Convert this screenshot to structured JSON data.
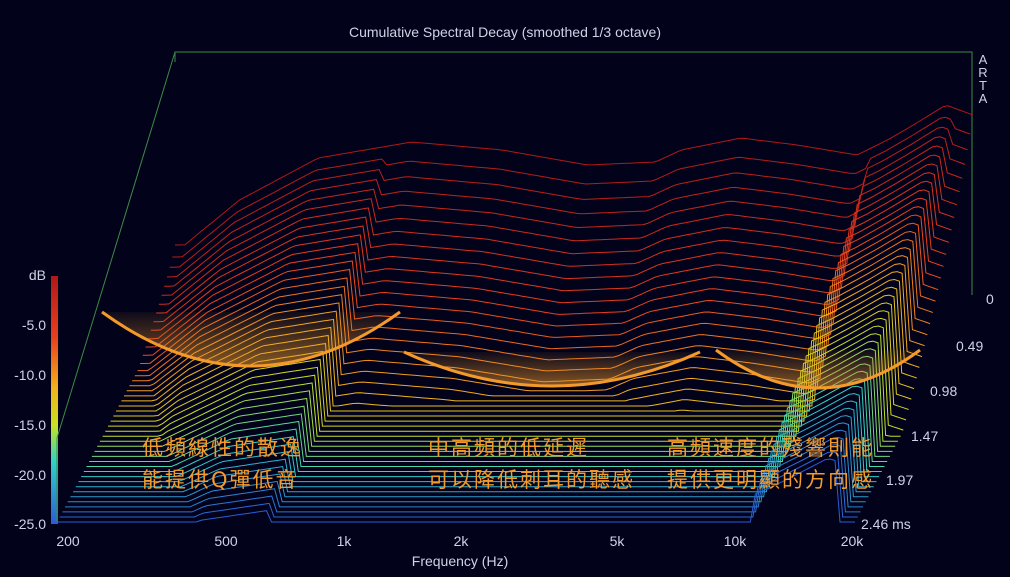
{
  "chart_data": {
    "type": "waterfall",
    "title": "Cumulative Spectral Decay (smoothed 1/3 octave)",
    "brand": "ARTA",
    "xlabel": "Frequency (Hz)",
    "ylabel": "dB",
    "x_scale": "log",
    "xlim": [
      170,
      20000
    ],
    "ylim": [
      -25,
      0
    ],
    "x_ticks": [
      "200",
      "500",
      "1k",
      "2k",
      "5k",
      "10k",
      "20k"
    ],
    "x_tick_values": [
      200,
      500,
      1000,
      2000,
      5000,
      10000,
      20000
    ],
    "y_ticks": [
      "dB",
      "-5.0",
      "-10.0",
      "-15.0",
      "-20.0",
      "-25.0"
    ],
    "z_ticks": [
      "0",
      "0.49",
      "0.98",
      "1.47",
      "1.97",
      "2.46 ms"
    ],
    "zlim_ms": [
      0,
      2.46
    ],
    "front_profile_db": [
      {
        "f": 180,
        "db": -16.5
      },
      {
        "f": 250,
        "db": -12.0
      },
      {
        "f": 400,
        "db": -7.8
      },
      {
        "f": 700,
        "db": -6.2
      },
      {
        "f": 1200,
        "db": -7.0
      },
      {
        "f": 2000,
        "db": -8.5
      },
      {
        "f": 3000,
        "db": -8.2
      },
      {
        "f": 3500,
        "db": -7.0
      },
      {
        "f": 5000,
        "db": -5.8
      },
      {
        "f": 7000,
        "db": -6.5
      },
      {
        "f": 10000,
        "db": -7.5
      },
      {
        "f": 12000,
        "db": -6.0
      },
      {
        "f": 14000,
        "db": -4.5
      },
      {
        "f": 17000,
        "db": -2.5
      },
      {
        "f": 20000,
        "db": -3.5
      }
    ]
  },
  "annotations": [
    {
      "lines": [
        "低頻線性的散逸",
        "能提供Q彈低音"
      ]
    },
    {
      "lines": [
        "中高頻的低延遲",
        "可以降低刺耳的聽感"
      ]
    },
    {
      "lines": [
        "高頻速度的殘響則能",
        "提供更明顯的方向感"
      ]
    }
  ],
  "colors": {
    "background": "#02031a",
    "highlight": "#f39a2b",
    "axis_frame": "#3c8a46",
    "floor": "#2b4fd6"
  }
}
